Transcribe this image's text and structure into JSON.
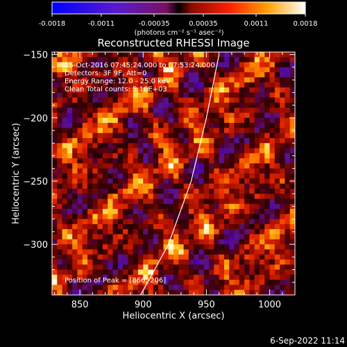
{
  "colorbar": {
    "ticks": [
      "-0.0018",
      "-0.0011",
      "-0.00035",
      "0.00035",
      "0.0011",
      "0.0018"
    ],
    "tick_values": [
      -0.0018,
      -0.0011,
      -0.00035,
      0.00035,
      0.0011,
      0.0018
    ],
    "range": [
      -0.0018,
      0.0018
    ],
    "units": "(photons cm⁻² s⁻¹ asec⁻²)",
    "colormap": "blue-purple-red-yellow-white"
  },
  "chart_data": {
    "type": "heatmap",
    "title": "Reconstructed RHESSI Image",
    "xlabel": "Heliocentric X (arcsec)",
    "ylabel": "Heliocentric Y (arcsec)",
    "xlim": [
      828,
      1020
    ],
    "ylim": [
      -340,
      -148
    ],
    "xticks": [
      850,
      900,
      950,
      1000
    ],
    "yticks": [
      -150,
      -200,
      -250,
      -300
    ],
    "xtick_labels": [
      "850",
      "900",
      "950",
      "1000"
    ],
    "ytick_labels": [
      "−150",
      "−200",
      "−250",
      "−300"
    ],
    "annotations": [
      "15-Oct-2016 07:45:24.000 to 07:53:24.000",
      "Detectors: 3F 9F, Att=0",
      "Energy Range: 12.0 - 25.0 keV",
      "Clean    Total counts: 5.10E+03"
    ],
    "peak_label": "Position of Peak = [866,-206]",
    "peak": [
      866,
      -206
    ],
    "limb_curve": [
      [
        898,
        -340
      ],
      [
        920,
        -300
      ],
      [
        938,
        -250
      ],
      [
        950,
        -200
      ],
      [
        960,
        -150
      ]
    ],
    "grid": false
  },
  "footer": {
    "timestamp": "6-Sep-2022 11:14"
  }
}
